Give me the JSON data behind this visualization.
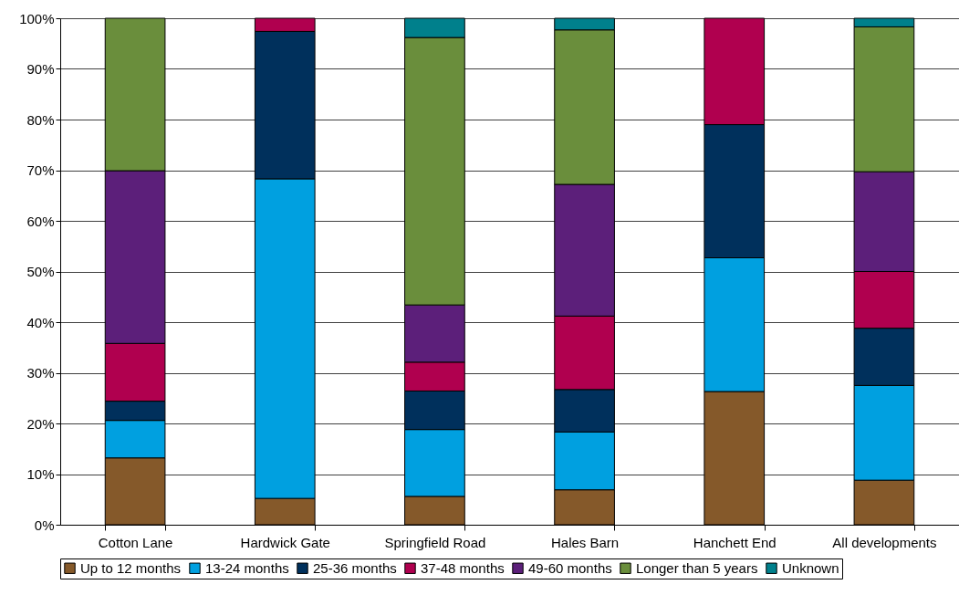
{
  "chart_data": {
    "type": "bar",
    "stacked": true,
    "categories": [
      "Cotton Lane",
      "Hardwick Gate",
      "Springfield Road",
      "Hales Barn",
      "Hanchett End",
      "All developments"
    ],
    "series": [
      {
        "name": "Up to 12 months",
        "color": "#85592a",
        "values": [
          13.2,
          5.2,
          5.6,
          6.9,
          26.3,
          8.8
        ]
      },
      {
        "name": "13-24 months",
        "color": "#00a0e0",
        "values": [
          7.4,
          63.1,
          13.2,
          11.4,
          26.4,
          18.7
        ]
      },
      {
        "name": "25-36 months",
        "color": "#00305c",
        "values": [
          3.8,
          29.1,
          7.6,
          8.4,
          26.3,
          11.3
        ]
      },
      {
        "name": "37-48 months",
        "color": "#b0004f",
        "values": [
          11.4,
          2.6,
          5.7,
          14.5,
          21.0,
          11.2
        ]
      },
      {
        "name": "49-60 months",
        "color": "#5c1f7a",
        "values": [
          34.1,
          0,
          11.3,
          26.0,
          0,
          19.7
        ]
      },
      {
        "name": "Longer than 5 years",
        "color": "#6a8e3c",
        "values": [
          30.1,
          0,
          52.8,
          30.5,
          0,
          28.6
        ]
      },
      {
        "name": "Unknown",
        "color": "#00808c",
        "values": [
          0,
          0,
          3.8,
          2.3,
          0,
          1.7
        ]
      }
    ],
    "ylim": [
      0,
      100
    ],
    "yticks": [
      {
        "value": 0,
        "label": "0%"
      },
      {
        "value": 10,
        "label": "10%"
      },
      {
        "value": 20,
        "label": "20%"
      },
      {
        "value": 30,
        "label": "30%"
      },
      {
        "value": 40,
        "label": "40%"
      },
      {
        "value": 50,
        "label": "50%"
      },
      {
        "value": 60,
        "label": "60%"
      },
      {
        "value": 70,
        "label": "70%"
      },
      {
        "value": 80,
        "label": "80%"
      },
      {
        "value": 90,
        "label": "90%"
      },
      {
        "value": 100,
        "label": "100%"
      }
    ],
    "grid": "y",
    "legend": "bottom"
  }
}
